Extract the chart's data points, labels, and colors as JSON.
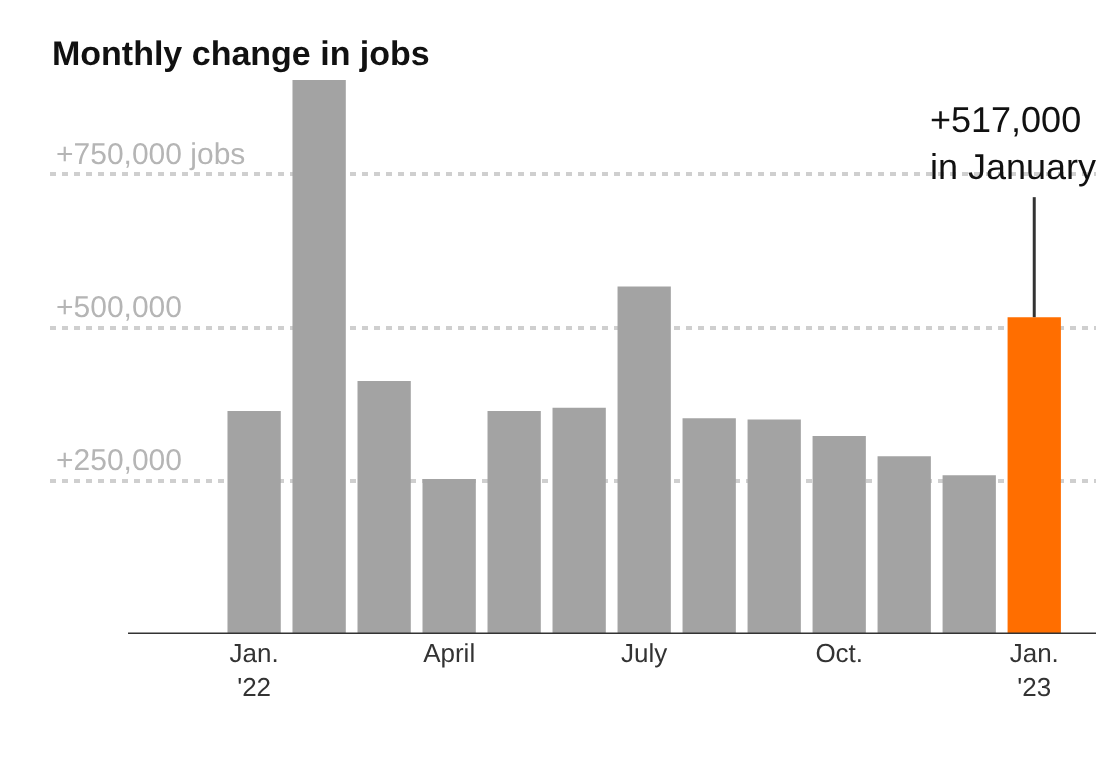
{
  "chart_data": {
    "type": "bar",
    "title": "Monthly change in jobs",
    "categories": [
      "Jan.\n'22",
      null,
      null,
      "April",
      null,
      null,
      "July",
      null,
      null,
      "Oct.",
      null,
      null,
      "Jan.\n'23"
    ],
    "values": [
      364000,
      904000,
      413000,
      253000,
      364000,
      369000,
      567000,
      352000,
      350000,
      323000,
      290000,
      259000,
      517000
    ],
    "colors": [
      "#a3a3a3",
      "#a3a3a3",
      "#a3a3a3",
      "#a3a3a3",
      "#a3a3a3",
      "#a3a3a3",
      "#a3a3a3",
      "#a3a3a3",
      "#a3a3a3",
      "#a3a3a3",
      "#a3a3a3",
      "#a3a3a3",
      "#ff6e00"
    ],
    "yticks": [
      {
        "value": 250000,
        "label": "+250,000"
      },
      {
        "value": 500000,
        "label": "+500,000"
      },
      {
        "value": 750000,
        "label": "+750,000 jobs"
      }
    ],
    "ylim": [
      0,
      904000
    ],
    "grid": "y",
    "annotations": [
      {
        "text": "+517,000\nin January",
        "x": "Jan.\n'23",
        "y": 517000
      }
    ]
  }
}
